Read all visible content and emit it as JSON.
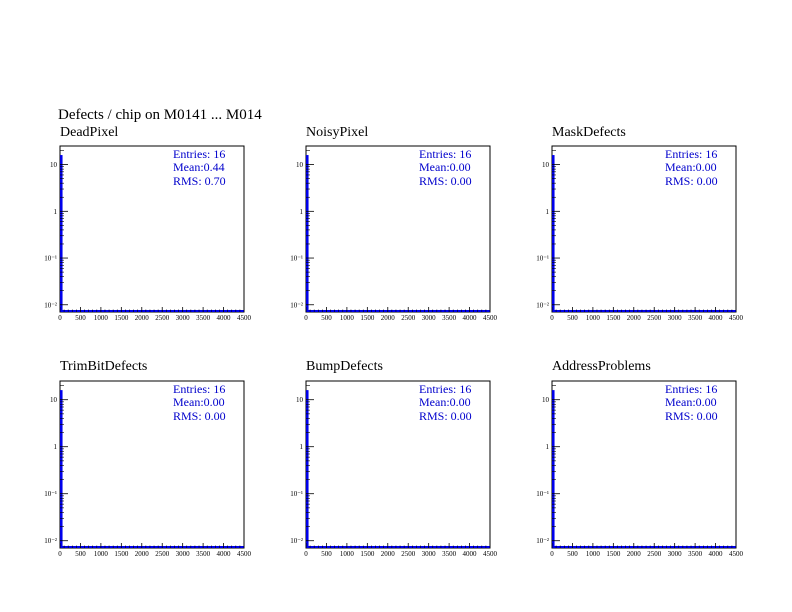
{
  "page": {
    "title": "Defects / chip on M0141 ... M014"
  },
  "colors": {
    "histogram": "#0000ee",
    "stats_text": "#0000cc",
    "axis": "#000000",
    "background": "#ffffff"
  },
  "chart_data": [
    {
      "type": "bar",
      "title": "DeadPixel",
      "x": [
        50
      ],
      "values": [
        16
      ],
      "xlim": [
        0,
        4500
      ],
      "ylim": [
        0.007,
        25
      ],
      "yscale": "log",
      "xticks": [
        "0",
        "500",
        "1000",
        "1500",
        "2000",
        "2500",
        "3000",
        "3500",
        "4000",
        "4500"
      ],
      "yticks": [
        "10",
        "1",
        "10⁻¹",
        "10⁻²"
      ],
      "stats": {
        "entries": "Entries:  16",
        "mean": "Mean:0.44",
        "rms": "RMS: 0.70"
      }
    },
    {
      "type": "bar",
      "title": "NoisyPixel",
      "x": [
        50
      ],
      "values": [
        16
      ],
      "xlim": [
        0,
        4500
      ],
      "ylim": [
        0.007,
        25
      ],
      "yscale": "log",
      "xticks": [
        "0",
        "500",
        "1000",
        "1500",
        "2000",
        "2500",
        "3000",
        "3500",
        "4000",
        "4500"
      ],
      "yticks": [
        "10",
        "1",
        "10⁻¹",
        "10⁻²"
      ],
      "stats": {
        "entries": "Entries:  16",
        "mean": "Mean:0.00",
        "rms": "RMS: 0.00"
      }
    },
    {
      "type": "bar",
      "title": "MaskDefects",
      "x": [
        50
      ],
      "values": [
        16
      ],
      "xlim": [
        0,
        4500
      ],
      "ylim": [
        0.007,
        25
      ],
      "yscale": "log",
      "xticks": [
        "0",
        "500",
        "1000",
        "1500",
        "2000",
        "2500",
        "3000",
        "3500",
        "4000",
        "4500"
      ],
      "yticks": [
        "10",
        "1",
        "10⁻¹",
        "10⁻²"
      ],
      "stats": {
        "entries": "Entries:  16",
        "mean": "Mean:0.00",
        "rms": "RMS: 0.00"
      }
    },
    {
      "type": "bar",
      "title": "TrimBitDefects",
      "x": [
        50
      ],
      "values": [
        16
      ],
      "xlim": [
        0,
        4500
      ],
      "ylim": [
        0.007,
        25
      ],
      "yscale": "log",
      "xticks": [
        "0",
        "500",
        "1000",
        "1500",
        "2000",
        "2500",
        "3000",
        "3500",
        "4000",
        "4500"
      ],
      "yticks": [
        "10",
        "1",
        "10⁻¹",
        "10⁻²"
      ],
      "stats": {
        "entries": "Entries:  16",
        "mean": "Mean:0.00",
        "rms": "RMS: 0.00"
      }
    },
    {
      "type": "bar",
      "title": "BumpDefects",
      "x": [
        50
      ],
      "values": [
        16
      ],
      "xlim": [
        0,
        4500
      ],
      "ylim": [
        0.007,
        25
      ],
      "yscale": "log",
      "xticks": [
        "0",
        "500",
        "1000",
        "1500",
        "2000",
        "2500",
        "3000",
        "3500",
        "4000",
        "4500"
      ],
      "yticks": [
        "10",
        "1",
        "10⁻¹",
        "10⁻²"
      ],
      "stats": {
        "entries": "Entries:  16",
        "mean": "Mean:0.00",
        "rms": "RMS: 0.00"
      }
    },
    {
      "type": "bar",
      "title": "AddressProblems",
      "x": [
        50
      ],
      "values": [
        16
      ],
      "xlim": [
        0,
        4500
      ],
      "ylim": [
        0.007,
        25
      ],
      "yscale": "log",
      "xticks": [
        "0",
        "500",
        "1000",
        "1500",
        "2000",
        "2500",
        "3000",
        "3500",
        "4000",
        "4500"
      ],
      "yticks": [
        "10",
        "1",
        "10⁻¹",
        "10⁻²"
      ],
      "stats": {
        "entries": "Entries:  16",
        "mean": "Mean:0.00",
        "rms": "RMS: 0.00"
      }
    }
  ]
}
